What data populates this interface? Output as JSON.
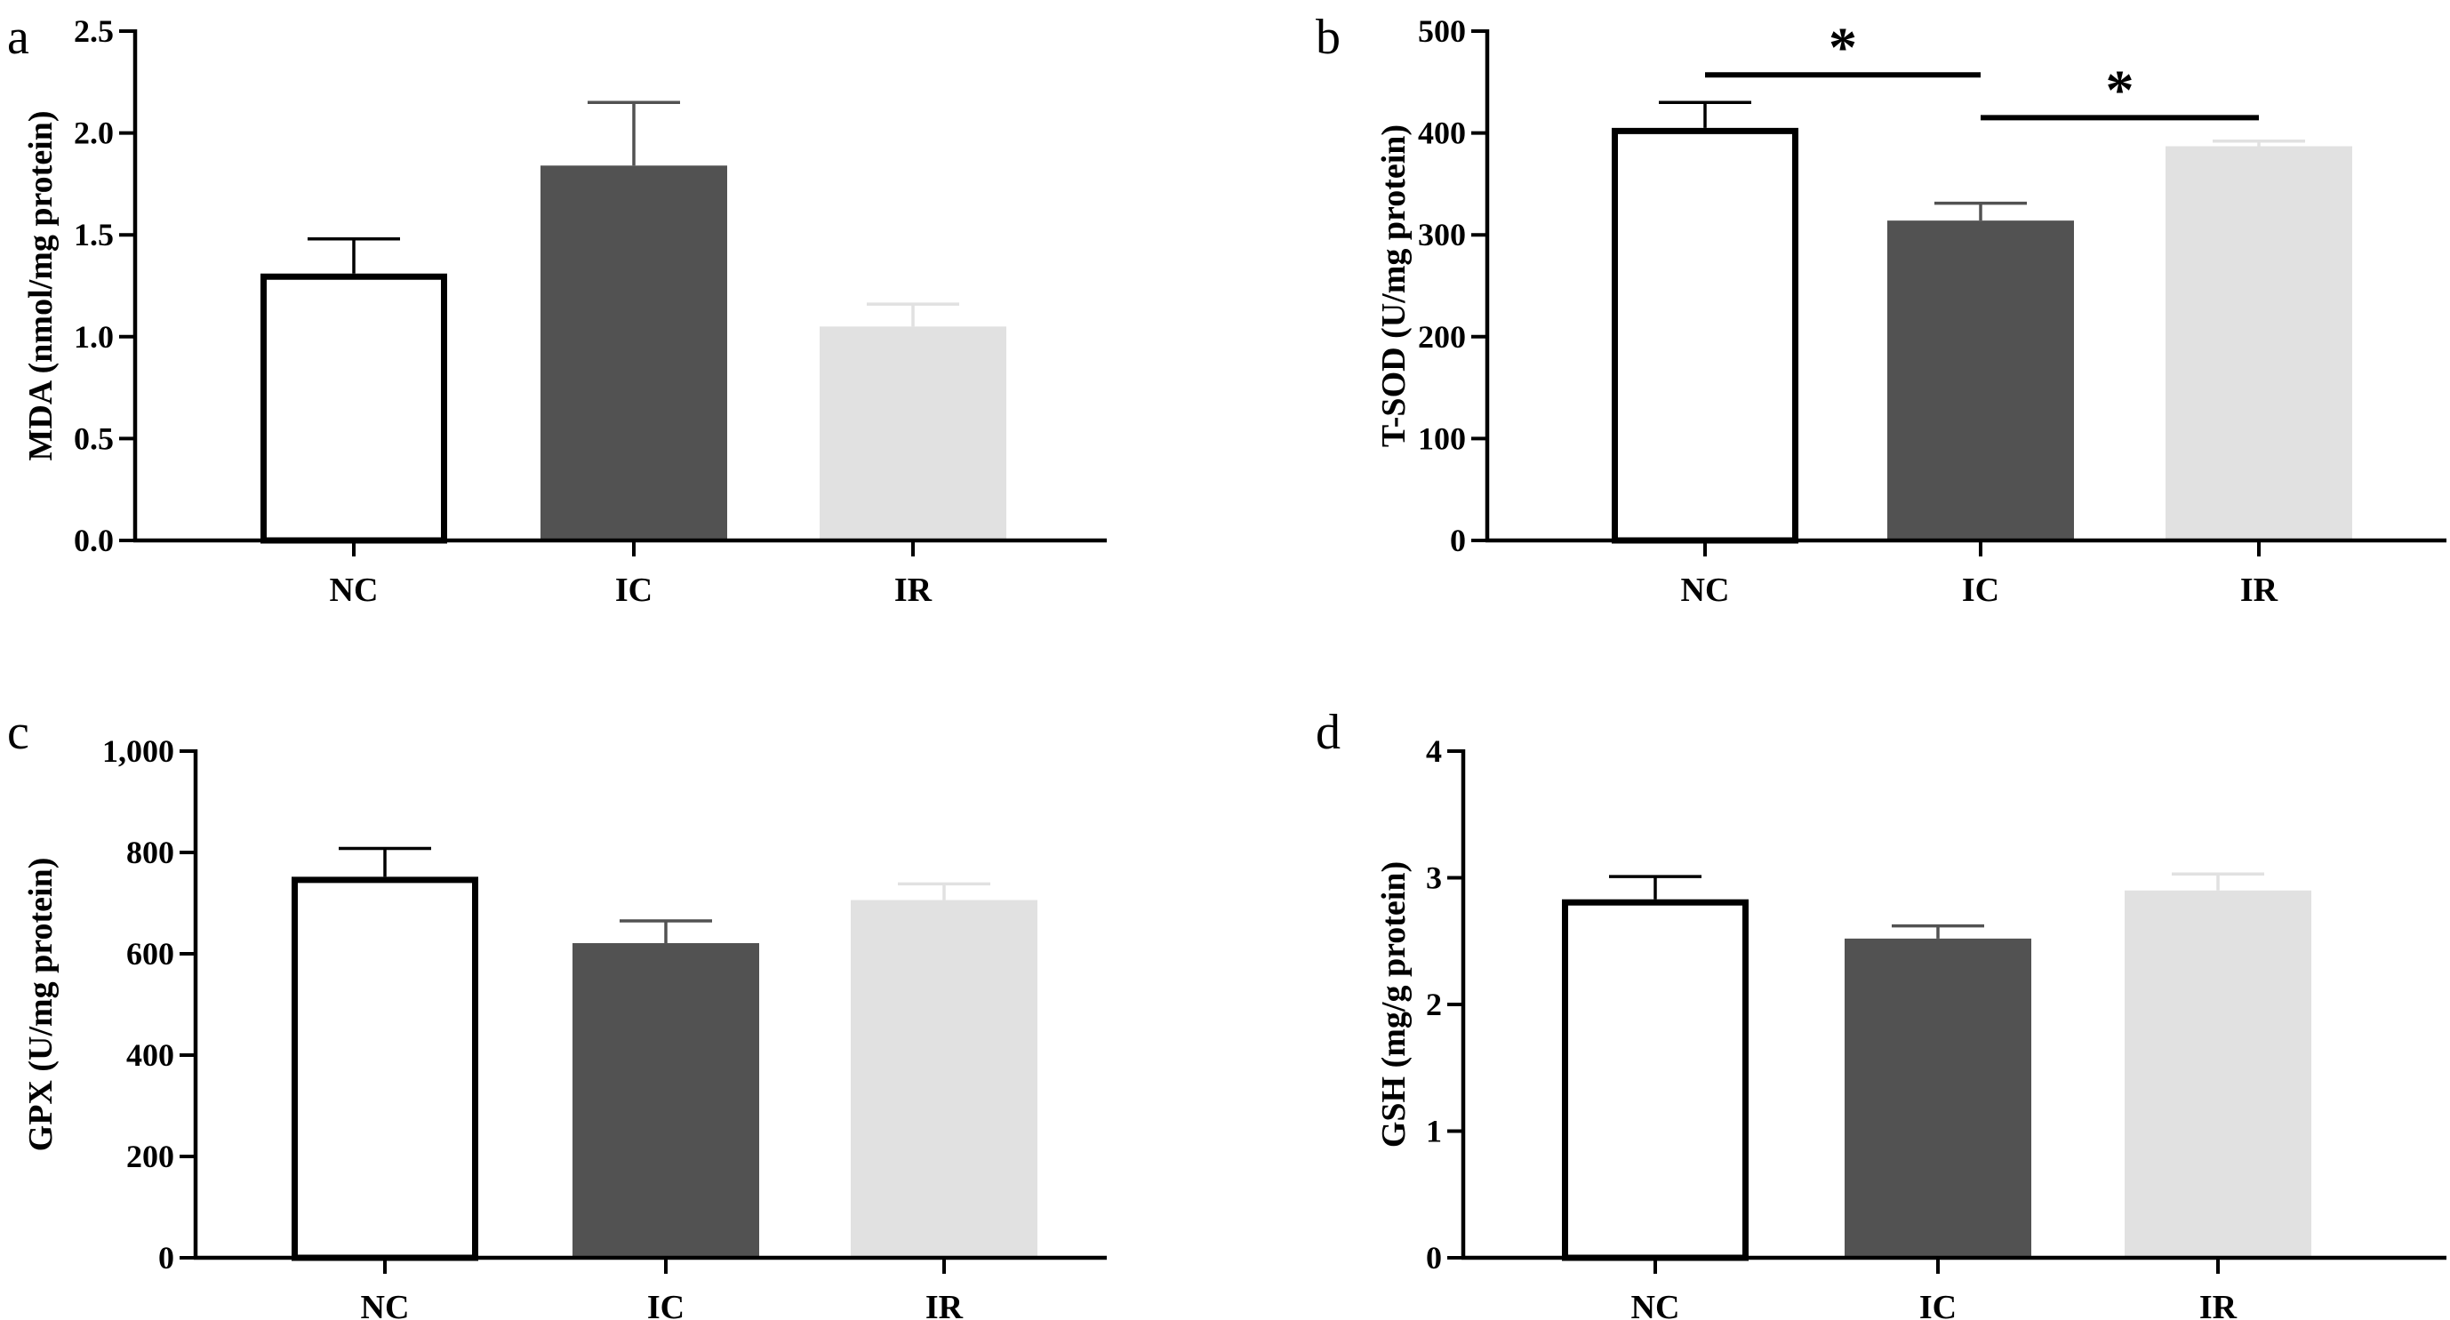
{
  "colors": {
    "NC_fill": "#ffffff",
    "NC_stroke": "#000000",
    "IC": "#525252",
    "IR": "#e1e1e1",
    "axis": "#000000"
  },
  "chart_data": [
    {
      "panel": "a",
      "type": "bar",
      "categories": [
        "NC",
        "IC",
        "IR"
      ],
      "values": [
        1.31,
        1.84,
        1.05
      ],
      "errors": [
        0.17,
        0.31,
        0.11
      ],
      "ylabel": "MDA (nmol/mg protein)",
      "xlabel": "",
      "ylim": [
        0,
        2.5
      ],
      "yticks": [
        0,
        0.5,
        1.0,
        1.5,
        2.0,
        2.5
      ],
      "ytick_labels": [
        "0.0",
        "0.5",
        "1.0",
        "1.5",
        "2.0",
        "2.5"
      ],
      "significance": []
    },
    {
      "panel": "b",
      "type": "bar",
      "categories": [
        "NC",
        "IC",
        "IR"
      ],
      "values": [
        405,
        314,
        387
      ],
      "errors": [
        25,
        17,
        5
      ],
      "ylabel": "T-SOD (U/mg protein)",
      "xlabel": "",
      "ylim": [
        0,
        500
      ],
      "yticks": [
        0,
        100,
        200,
        300,
        400,
        500
      ],
      "ytick_labels": [
        "0",
        "100",
        "200",
        "300",
        "400",
        "500"
      ],
      "significance": [
        {
          "from": "NC",
          "to": "IC",
          "level": 457,
          "label": "*"
        },
        {
          "from": "IC",
          "to": "IR",
          "level": 415,
          "label": "*"
        }
      ]
    },
    {
      "panel": "c",
      "type": "bar",
      "categories": [
        "NC",
        "IC",
        "IR"
      ],
      "values": [
        752,
        621,
        706
      ],
      "errors": [
        56,
        44,
        32
      ],
      "ylabel": "GPX (U/mg protein)",
      "xlabel": "",
      "ylim": [
        0,
        1000
      ],
      "yticks": [
        0,
        200,
        400,
        600,
        800,
        1000
      ],
      "ytick_labels": [
        "0",
        "200",
        "400",
        "600",
        "800",
        "1,000"
      ],
      "significance": []
    },
    {
      "panel": "d",
      "type": "bar",
      "categories": [
        "NC",
        "IC",
        "IR"
      ],
      "values": [
        2.83,
        2.52,
        2.9
      ],
      "errors": [
        0.18,
        0.1,
        0.13
      ],
      "ylabel": "GSH (mg/g protein)",
      "xlabel": "",
      "ylim": [
        0,
        4
      ],
      "yticks": [
        0,
        1,
        2,
        3,
        4
      ],
      "ytick_labels": [
        "0",
        "1",
        "2",
        "3",
        "4"
      ],
      "significance": []
    }
  ]
}
